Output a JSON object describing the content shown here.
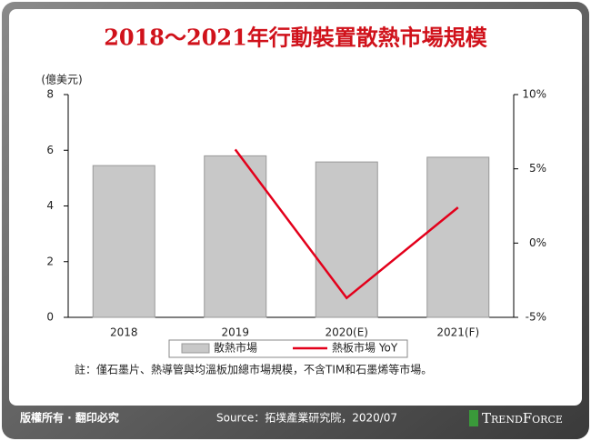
{
  "chart_data": {
    "type": "bar",
    "title": "2018～2021年行動裝置散熱市場規模",
    "y_label": "(億美元)",
    "categories": [
      "2018",
      "2019",
      "2020(E)",
      "2021(F)"
    ],
    "series": [
      {
        "name": "散熱市場",
        "color": "#c8c8c8",
        "values": [
          5.45,
          5.8,
          5.58,
          5.75
        ]
      },
      {
        "name": "熱板市場 YoY",
        "color": "#e3001b",
        "type": "line",
        "axis": "y2",
        "values": [
          null,
          6.3,
          -3.7,
          2.4
        ]
      }
    ],
    "ylim": [
      0,
      8
    ],
    "yticks": [
      0,
      2,
      4,
      6,
      8
    ],
    "y2lim": [
      -5,
      10
    ],
    "y2ticks": [
      {
        "value": -5,
        "label": "-5%"
      },
      {
        "value": 0,
        "label": "0%"
      },
      {
        "value": 5,
        "label": "5%"
      },
      {
        "value": 10,
        "label": "10%"
      }
    ],
    "note": "註：僅石墨片、熱導管與均溫板加總市場規模，不含TIM和石墨烯等市場。"
  },
  "footer": {
    "copyright": "版權所有 · 翻印必究",
    "source": "Source：拓墣產業研究院，2020/07",
    "brand": "TrendForce"
  }
}
